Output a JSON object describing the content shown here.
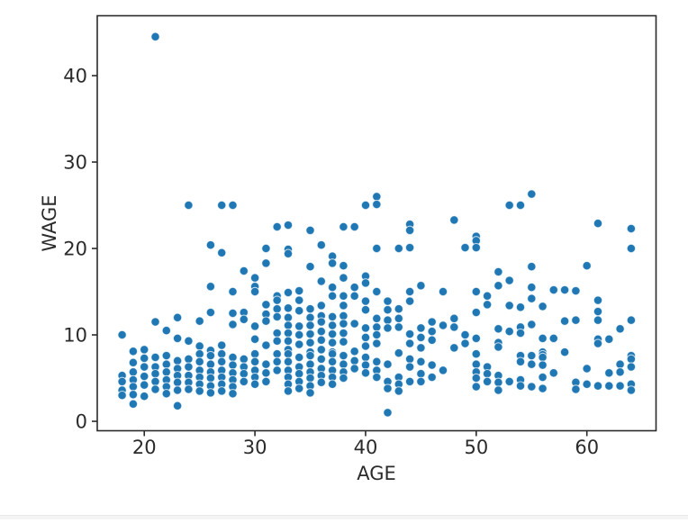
{
  "chart_data": {
    "type": "scatter",
    "title": "",
    "xlabel": "AGE",
    "ylabel": "WAGE",
    "xticks": [
      20,
      30,
      40,
      50,
      60
    ],
    "yticks": [
      0,
      10,
      20,
      30,
      40
    ],
    "xlim": [
      15.75,
      66.25
    ],
    "ylim": [
      -1.09,
      46.93
    ],
    "grid": false,
    "legend": "none",
    "point_color": "#1f77b4",
    "point_edge_color": "#ffffff",
    "axis_color": "#2b2b2b",
    "points": [
      [
        18,
        10.0
      ],
      [
        18,
        5.3
      ],
      [
        18,
        4.6
      ],
      [
        18,
        3.6
      ],
      [
        18,
        3.0
      ],
      [
        19,
        8.1
      ],
      [
        19,
        6.8
      ],
      [
        19,
        5.7
      ],
      [
        19,
        4.8
      ],
      [
        19,
        4.0
      ],
      [
        19,
        3.1
      ],
      [
        19,
        2.0
      ],
      [
        20,
        8.3
      ],
      [
        20,
        7.3
      ],
      [
        20,
        6.3
      ],
      [
        20,
        5.2
      ],
      [
        20,
        4.2
      ],
      [
        20,
        2.9
      ],
      [
        21,
        44.5
      ],
      [
        21,
        11.5
      ],
      [
        21,
        7.4
      ],
      [
        21,
        6.3
      ],
      [
        21,
        5.5
      ],
      [
        21,
        4.6
      ],
      [
        21,
        3.7
      ],
      [
        22,
        10.5
      ],
      [
        22,
        7.6
      ],
      [
        22,
        6.6
      ],
      [
        22,
        5.7
      ],
      [
        22,
        4.8
      ],
      [
        22,
        4.0
      ],
      [
        22,
        3.2
      ],
      [
        23,
        12.0
      ],
      [
        23,
        9.6
      ],
      [
        23,
        7.0
      ],
      [
        23,
        6.1
      ],
      [
        23,
        5.3
      ],
      [
        23,
        4.5
      ],
      [
        23,
        3.6
      ],
      [
        23,
        1.8
      ],
      [
        24,
        25.0
      ],
      [
        24,
        9.3
      ],
      [
        24,
        7.2
      ],
      [
        24,
        6.3
      ],
      [
        24,
        5.3
      ],
      [
        24,
        4.5
      ],
      [
        24,
        3.7
      ],
      [
        25,
        11.6
      ],
      [
        25,
        8.7
      ],
      [
        25,
        7.8
      ],
      [
        25,
        6.9
      ],
      [
        25,
        5.9
      ],
      [
        25,
        5.1
      ],
      [
        25,
        4.3
      ],
      [
        25,
        3.5
      ],
      [
        26,
        20.4
      ],
      [
        26,
        15.6
      ],
      [
        26,
        12.6
      ],
      [
        26,
        8.2
      ],
      [
        26,
        7.6
      ],
      [
        26,
        6.6
      ],
      [
        26,
        5.7
      ],
      [
        26,
        5.0
      ],
      [
        26,
        4.1
      ],
      [
        26,
        3.3
      ],
      [
        27,
        25.0
      ],
      [
        27,
        19.5
      ],
      [
        27,
        8.8
      ],
      [
        27,
        7.8
      ],
      [
        27,
        6.9
      ],
      [
        27,
        5.9
      ],
      [
        27,
        5.1
      ],
      [
        27,
        4.3
      ],
      [
        27,
        3.5
      ],
      [
        28,
        25.0
      ],
      [
        28,
        15.0
      ],
      [
        28,
        12.5
      ],
      [
        28,
        11.2
      ],
      [
        28,
        7.4
      ],
      [
        28,
        6.5
      ],
      [
        28,
        5.6
      ],
      [
        28,
        4.8
      ],
      [
        28,
        4.0
      ],
      [
        28,
        3.2
      ],
      [
        29,
        17.4
      ],
      [
        29,
        12.6
      ],
      [
        29,
        11.8
      ],
      [
        29,
        7.2
      ],
      [
        29,
        6.3
      ],
      [
        29,
        5.5
      ],
      [
        29,
        4.6
      ],
      [
        30,
        16.6
      ],
      [
        30,
        15.6
      ],
      [
        30,
        15.0
      ],
      [
        30,
        11.0
      ],
      [
        30,
        9.5
      ],
      [
        30,
        7.8
      ],
      [
        30,
        6.9
      ],
      [
        30,
        5.9
      ],
      [
        30,
        5.1
      ],
      [
        30,
        4.3
      ],
      [
        31,
        20.0
      ],
      [
        31,
        18.3
      ],
      [
        31,
        13.5
      ],
      [
        31,
        12.4
      ],
      [
        31,
        11.6
      ],
      [
        31,
        8.8
      ],
      [
        31,
        6.6
      ],
      [
        31,
        5.6
      ],
      [
        31,
        4.6
      ],
      [
        32,
        22.5
      ],
      [
        32,
        14.5
      ],
      [
        32,
        14.0
      ],
      [
        32,
        13.0
      ],
      [
        32,
        12.1
      ],
      [
        32,
        10.2
      ],
      [
        32,
        9.3
      ],
      [
        32,
        7.8
      ],
      [
        32,
        6.9
      ],
      [
        32,
        5.9
      ],
      [
        33,
        22.7
      ],
      [
        33,
        19.9
      ],
      [
        33,
        19.4
      ],
      [
        33,
        14.9
      ],
      [
        33,
        13.1
      ],
      [
        33,
        12.0
      ],
      [
        33,
        11.1
      ],
      [
        33,
        10.2
      ],
      [
        33,
        9.3
      ],
      [
        33,
        8.3
      ],
      [
        33,
        7.8
      ],
      [
        33,
        6.9
      ],
      [
        33,
        5.9
      ],
      [
        33,
        5.1
      ],
      [
        33,
        4.3
      ],
      [
        33,
        3.5
      ],
      [
        34,
        15.1
      ],
      [
        34,
        14.0
      ],
      [
        34,
        12.8
      ],
      [
        34,
        11.0
      ],
      [
        34,
        10.0
      ],
      [
        34,
        8.9
      ],
      [
        34,
        7.4
      ],
      [
        34,
        6.3
      ],
      [
        34,
        5.5
      ],
      [
        34,
        4.6
      ],
      [
        34,
        3.8
      ],
      [
        35,
        22.1
      ],
      [
        35,
        17.9
      ],
      [
        35,
        13.0
      ],
      [
        35,
        12.0
      ],
      [
        35,
        11.1
      ],
      [
        35,
        10.1
      ],
      [
        35,
        9.1
      ],
      [
        35,
        8.0
      ],
      [
        35,
        7.6
      ],
      [
        35,
        6.6
      ],
      [
        35,
        5.7
      ],
      [
        35,
        5.0
      ],
      [
        35,
        4.1
      ],
      [
        35,
        3.3
      ],
      [
        36,
        20.4
      ],
      [
        36,
        16.2
      ],
      [
        36,
        13.4
      ],
      [
        36,
        12.2
      ],
      [
        36,
        11.5
      ],
      [
        36,
        10.4
      ],
      [
        36,
        9.4
      ],
      [
        36,
        8.3
      ],
      [
        36,
        7.2
      ],
      [
        36,
        6.1
      ],
      [
        36,
        5.3
      ],
      [
        36,
        4.5
      ],
      [
        37,
        19.1
      ],
      [
        37,
        18.3
      ],
      [
        37,
        15.5
      ],
      [
        37,
        14.5
      ],
      [
        37,
        12.1
      ],
      [
        37,
        11.1
      ],
      [
        37,
        10.1
      ],
      [
        37,
        9.1
      ],
      [
        37,
        8.0
      ],
      [
        37,
        7.8
      ],
      [
        37,
        6.9
      ],
      [
        37,
        5.9
      ],
      [
        37,
        5.1
      ],
      [
        37,
        4.3
      ],
      [
        38,
        22.5
      ],
      [
        38,
        18.0
      ],
      [
        38,
        16.6
      ],
      [
        38,
        14.5
      ],
      [
        38,
        13.4
      ],
      [
        38,
        12.2
      ],
      [
        38,
        11.3
      ],
      [
        38,
        10.2
      ],
      [
        38,
        9.2
      ],
      [
        38,
        7.6
      ],
      [
        38,
        6.6
      ],
      [
        38,
        5.7
      ],
      [
        38,
        5.0
      ],
      [
        39,
        22.5
      ],
      [
        39,
        15.5
      ],
      [
        39,
        14.5
      ],
      [
        39,
        11.3
      ],
      [
        39,
        8.1
      ],
      [
        39,
        7.0
      ],
      [
        39,
        6.1
      ],
      [
        40,
        25.0
      ],
      [
        40,
        16.8
      ],
      [
        40,
        16.0
      ],
      [
        40,
        13.9
      ],
      [
        40,
        12.9
      ],
      [
        40,
        10.8
      ],
      [
        40,
        9.7
      ],
      [
        40,
        8.7
      ],
      [
        40,
        7.4
      ],
      [
        40,
        6.5
      ],
      [
        40,
        5.6
      ],
      [
        41,
        26.0
      ],
      [
        41,
        25.1
      ],
      [
        41,
        20.0
      ],
      [
        41,
        15.0
      ],
      [
        41,
        11.9
      ],
      [
        41,
        10.9
      ],
      [
        41,
        10.0
      ],
      [
        41,
        9.0
      ],
      [
        41,
        6.9
      ],
      [
        41,
        5.9
      ],
      [
        41,
        5.1
      ],
      [
        42,
        13.9
      ],
      [
        42,
        12.9
      ],
      [
        42,
        11.7
      ],
      [
        42,
        10.8
      ],
      [
        42,
        6.6
      ],
      [
        42,
        4.6
      ],
      [
        42,
        3.8
      ],
      [
        42,
        1.0
      ],
      [
        43,
        20.0
      ],
      [
        43,
        13.0
      ],
      [
        43,
        11.9
      ],
      [
        43,
        10.9
      ],
      [
        43,
        7.9
      ],
      [
        43,
        5.1
      ],
      [
        43,
        4.3
      ],
      [
        43,
        3.5
      ],
      [
        44,
        22.8
      ],
      [
        44,
        22.1
      ],
      [
        44,
        20.1
      ],
      [
        44,
        15.0
      ],
      [
        44,
        13.9
      ],
      [
        44,
        10.1
      ],
      [
        44,
        9.0
      ],
      [
        44,
        7.2
      ],
      [
        44,
        6.3
      ],
      [
        44,
        4.6
      ],
      [
        45,
        15.7
      ],
      [
        45,
        10.8
      ],
      [
        45,
        9.7
      ],
      [
        45,
        8.5
      ],
      [
        45,
        6.9
      ],
      [
        45,
        5.5
      ],
      [
        45,
        4.6
      ],
      [
        46,
        11.5
      ],
      [
        46,
        10.4
      ],
      [
        46,
        9.4
      ],
      [
        46,
        6.5
      ],
      [
        46,
        5.1
      ],
      [
        47,
        15.0
      ],
      [
        47,
        11.1
      ],
      [
        47,
        5.9
      ],
      [
        48,
        23.3
      ],
      [
        48,
        11.9
      ],
      [
        48,
        10.9
      ],
      [
        48,
        8.5
      ],
      [
        49,
        20.1
      ],
      [
        49,
        10.0
      ],
      [
        49,
        9.0
      ],
      [
        50,
        21.4
      ],
      [
        50,
        20.9
      ],
      [
        50,
        20.1
      ],
      [
        50,
        15.0
      ],
      [
        50,
        12.6
      ],
      [
        50,
        9.6
      ],
      [
        50,
        7.8
      ],
      [
        50,
        6.6
      ],
      [
        50,
        5.7
      ],
      [
        50,
        5.0
      ],
      [
        50,
        4.0
      ],
      [
        51,
        14.5
      ],
      [
        51,
        13.5
      ],
      [
        51,
        6.3
      ],
      [
        51,
        5.5
      ],
      [
        51,
        4.6
      ],
      [
        52,
        17.3
      ],
      [
        52,
        15.7
      ],
      [
        52,
        10.7
      ],
      [
        52,
        9.1
      ],
      [
        52,
        8.6
      ],
      [
        52,
        5.3
      ],
      [
        52,
        4.5
      ],
      [
        52,
        3.6
      ],
      [
        53,
        25.0
      ],
      [
        53,
        16.3
      ],
      [
        53,
        13.4
      ],
      [
        53,
        10.4
      ],
      [
        53,
        4.6
      ],
      [
        54,
        25.0
      ],
      [
        54,
        13.2
      ],
      [
        54,
        10.9
      ],
      [
        54,
        10.2
      ],
      [
        54,
        7.6
      ],
      [
        54,
        6.9
      ],
      [
        54,
        4.8
      ],
      [
        54,
        4.1
      ],
      [
        55,
        26.3
      ],
      [
        55,
        17.9
      ],
      [
        55,
        15.5
      ],
      [
        55,
        14.2
      ],
      [
        55,
        11.2
      ],
      [
        55,
        7.6
      ],
      [
        55,
        6.6
      ],
      [
        55,
        4.0
      ],
      [
        56,
        13.3
      ],
      [
        56,
        9.6
      ],
      [
        56,
        8.0
      ],
      [
        56,
        7.7
      ],
      [
        56,
        7.4
      ],
      [
        56,
        6.5
      ],
      [
        56,
        5.1
      ],
      [
        56,
        3.8
      ],
      [
        57,
        15.2
      ],
      [
        57,
        9.6
      ],
      [
        57,
        5.6
      ],
      [
        58,
        15.2
      ],
      [
        58,
        11.6
      ],
      [
        58,
        8.0
      ],
      [
        59,
        15.1
      ],
      [
        59,
        11.7
      ],
      [
        59,
        4.5
      ],
      [
        59,
        3.7
      ],
      [
        60,
        18.0
      ],
      [
        60,
        6.1
      ],
      [
        60,
        4.3
      ],
      [
        61,
        22.9
      ],
      [
        61,
        14.0
      ],
      [
        61,
        12.7
      ],
      [
        61,
        11.7
      ],
      [
        61,
        9.5
      ],
      [
        61,
        9.0
      ],
      [
        61,
        4.1
      ],
      [
        62,
        9.5
      ],
      [
        62,
        5.6
      ],
      [
        62,
        4.1
      ],
      [
        63,
        10.7
      ],
      [
        63,
        6.6
      ],
      [
        63,
        5.7
      ],
      [
        63,
        4.1
      ],
      [
        64,
        22.3
      ],
      [
        64,
        20.0
      ],
      [
        64,
        11.7
      ],
      [
        64,
        7.6
      ],
      [
        64,
        7.2
      ],
      [
        64,
        6.3
      ],
      [
        64,
        4.3
      ],
      [
        64,
        3.6
      ]
    ]
  },
  "page": {
    "background": "#ffffff",
    "footer_strip_color": "#f4f4f5"
  }
}
